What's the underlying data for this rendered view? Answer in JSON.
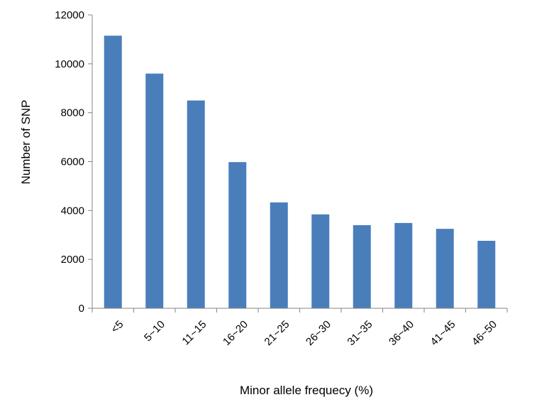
{
  "chart_data": {
    "type": "bar",
    "title": "",
    "xlabel": "Minor allele frequecy (%)",
    "ylabel": "Number of SNP",
    "categories": [
      "<5",
      "5~10",
      "11~15",
      "16~20",
      "21~25",
      "26~30",
      "31~35",
      "36~40",
      "41~45",
      "46~50"
    ],
    "values": [
      11150,
      9600,
      8500,
      5980,
      4330,
      3840,
      3400,
      3490,
      3250,
      2760
    ],
    "ylim": [
      0,
      12000
    ],
    "yticks": [
      "0",
      "2000",
      "4000",
      "6000",
      "8000",
      "10000",
      "12000"
    ],
    "grid": false,
    "legend": "none",
    "bar_color": "#4A7EBB"
  }
}
